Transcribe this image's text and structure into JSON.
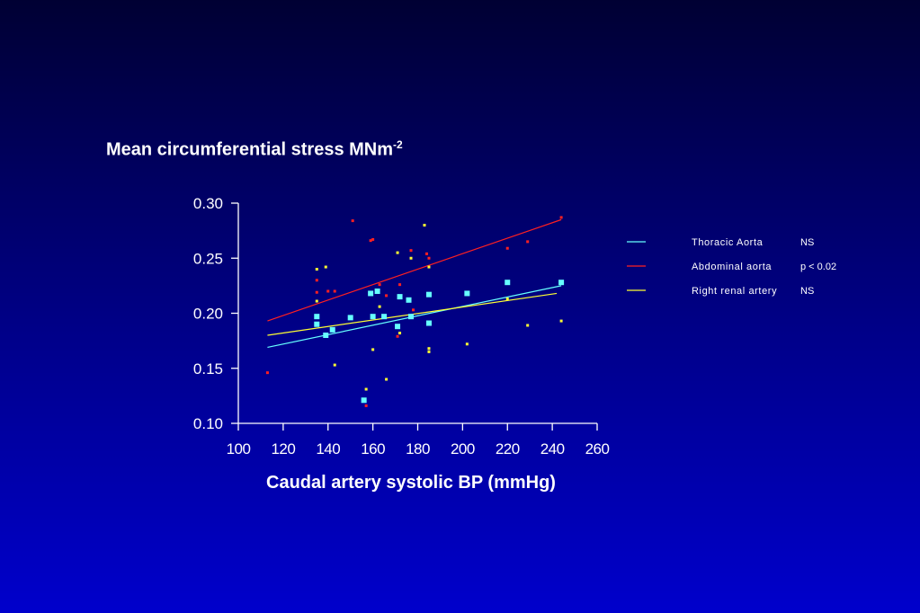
{
  "chart_data": {
    "type": "scatter",
    "ylabel": "Mean circumferential stress MNm",
    "ylabel_superscript": "-2",
    "xlabel": "Caudal artery systolic BP (mmHg)",
    "xlim": [
      100,
      260
    ],
    "ylim": [
      0.1,
      0.3
    ],
    "xticks": [
      "100",
      "120",
      "140",
      "160",
      "180",
      "200",
      "220",
      "240",
      "260"
    ],
    "yticks": [
      "0.10",
      "0.15",
      "0.20",
      "0.25",
      "0.30"
    ],
    "legend_position": "right",
    "series": [
      {
        "name": "Thoracic Aorta",
        "significance": "NS",
        "color": "#66ffff",
        "marker_size": 6,
        "fit": [
          [
            113,
            0.169
          ],
          [
            244,
            0.225
          ]
        ],
        "points": [
          [
            135,
            0.197
          ],
          [
            135,
            0.19
          ],
          [
            139,
            0.18
          ],
          [
            142,
            0.185
          ],
          [
            150,
            0.196
          ],
          [
            156,
            0.121
          ],
          [
            159,
            0.218
          ],
          [
            160,
            0.197
          ],
          [
            162,
            0.22
          ],
          [
            165,
            0.197
          ],
          [
            171,
            0.188
          ],
          [
            172,
            0.215
          ],
          [
            176,
            0.212
          ],
          [
            177,
            0.197
          ],
          [
            185,
            0.217
          ],
          [
            185,
            0.191
          ],
          [
            202,
            0.218
          ],
          [
            220,
            0.228
          ],
          [
            244,
            0.228
          ]
        ]
      },
      {
        "name": "Abdominal aorta",
        "significance": "p < 0.02",
        "color": "#ff2020",
        "marker_size": 3,
        "fit": [
          [
            113,
            0.193
          ],
          [
            244,
            0.285
          ]
        ],
        "points": [
          [
            113,
            0.146
          ],
          [
            135,
            0.23
          ],
          [
            135,
            0.219
          ],
          [
            140,
            0.22
          ],
          [
            143,
            0.22
          ],
          [
            151,
            0.284
          ],
          [
            157,
            0.116
          ],
          [
            159,
            0.266
          ],
          [
            160,
            0.267
          ],
          [
            163,
            0.226
          ],
          [
            166,
            0.216
          ],
          [
            171,
            0.179
          ],
          [
            172,
            0.226
          ],
          [
            177,
            0.257
          ],
          [
            178,
            0.203
          ],
          [
            184,
            0.254
          ],
          [
            185,
            0.25
          ],
          [
            220,
            0.259
          ],
          [
            229,
            0.265
          ],
          [
            244,
            0.287
          ]
        ]
      },
      {
        "name": "Right renal artery",
        "significance": "NS",
        "color": "#ffff33",
        "marker_size": 3,
        "fit": [
          [
            113,
            0.18
          ],
          [
            242,
            0.218
          ]
        ],
        "points": [
          [
            135,
            0.24
          ],
          [
            135,
            0.211
          ],
          [
            139,
            0.242
          ],
          [
            143,
            0.153
          ],
          [
            157,
            0.131
          ],
          [
            160,
            0.167
          ],
          [
            163,
            0.206
          ],
          [
            166,
            0.14
          ],
          [
            171,
            0.255
          ],
          [
            172,
            0.182
          ],
          [
            177,
            0.25
          ],
          [
            183,
            0.28
          ],
          [
            185,
            0.242
          ],
          [
            185,
            0.168
          ],
          [
            185,
            0.165
          ],
          [
            202,
            0.172
          ],
          [
            220,
            0.213
          ],
          [
            229,
            0.189
          ],
          [
            244,
            0.193
          ]
        ]
      }
    ]
  }
}
